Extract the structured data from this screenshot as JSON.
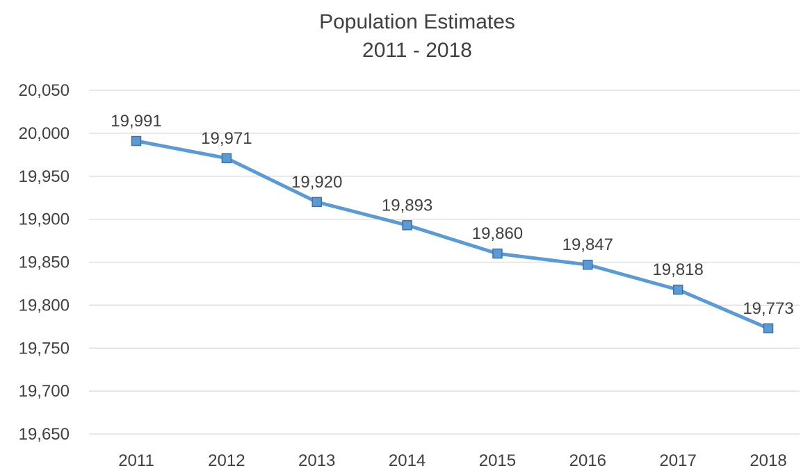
{
  "chart_data": {
    "type": "line",
    "title": "Population Estimates",
    "subtitle": "2011 - 2018",
    "xlabel": "",
    "ylabel": "",
    "categories": [
      "2011",
      "2012",
      "2013",
      "2014",
      "2015",
      "2016",
      "2017",
      "2018"
    ],
    "series": [
      {
        "values": [
          19991,
          19971,
          19920,
          19893,
          19860,
          19847,
          19818,
          19773
        ],
        "data_labels": [
          "19,991",
          "19,971",
          "19,920",
          "19,893",
          "19,860",
          "19,847",
          "19,818",
          "19,773"
        ]
      }
    ],
    "ylim": [
      19650,
      20050
    ],
    "yticks": [
      20050,
      20000,
      19950,
      19900,
      19850,
      19800,
      19750,
      19700,
      19650
    ],
    "ytick_labels": [
      "20,050",
      "20,000",
      "19,950",
      "19,900",
      "19,850",
      "19,800",
      "19,750",
      "19,700",
      "19,650"
    ],
    "grid": true,
    "legend": "none",
    "colors": {
      "line": "#5B9BD5",
      "marker_fill": "#5B9BD5",
      "marker_stroke": "#41719C",
      "grid": "#D9D9D9",
      "text": "#404040"
    }
  }
}
